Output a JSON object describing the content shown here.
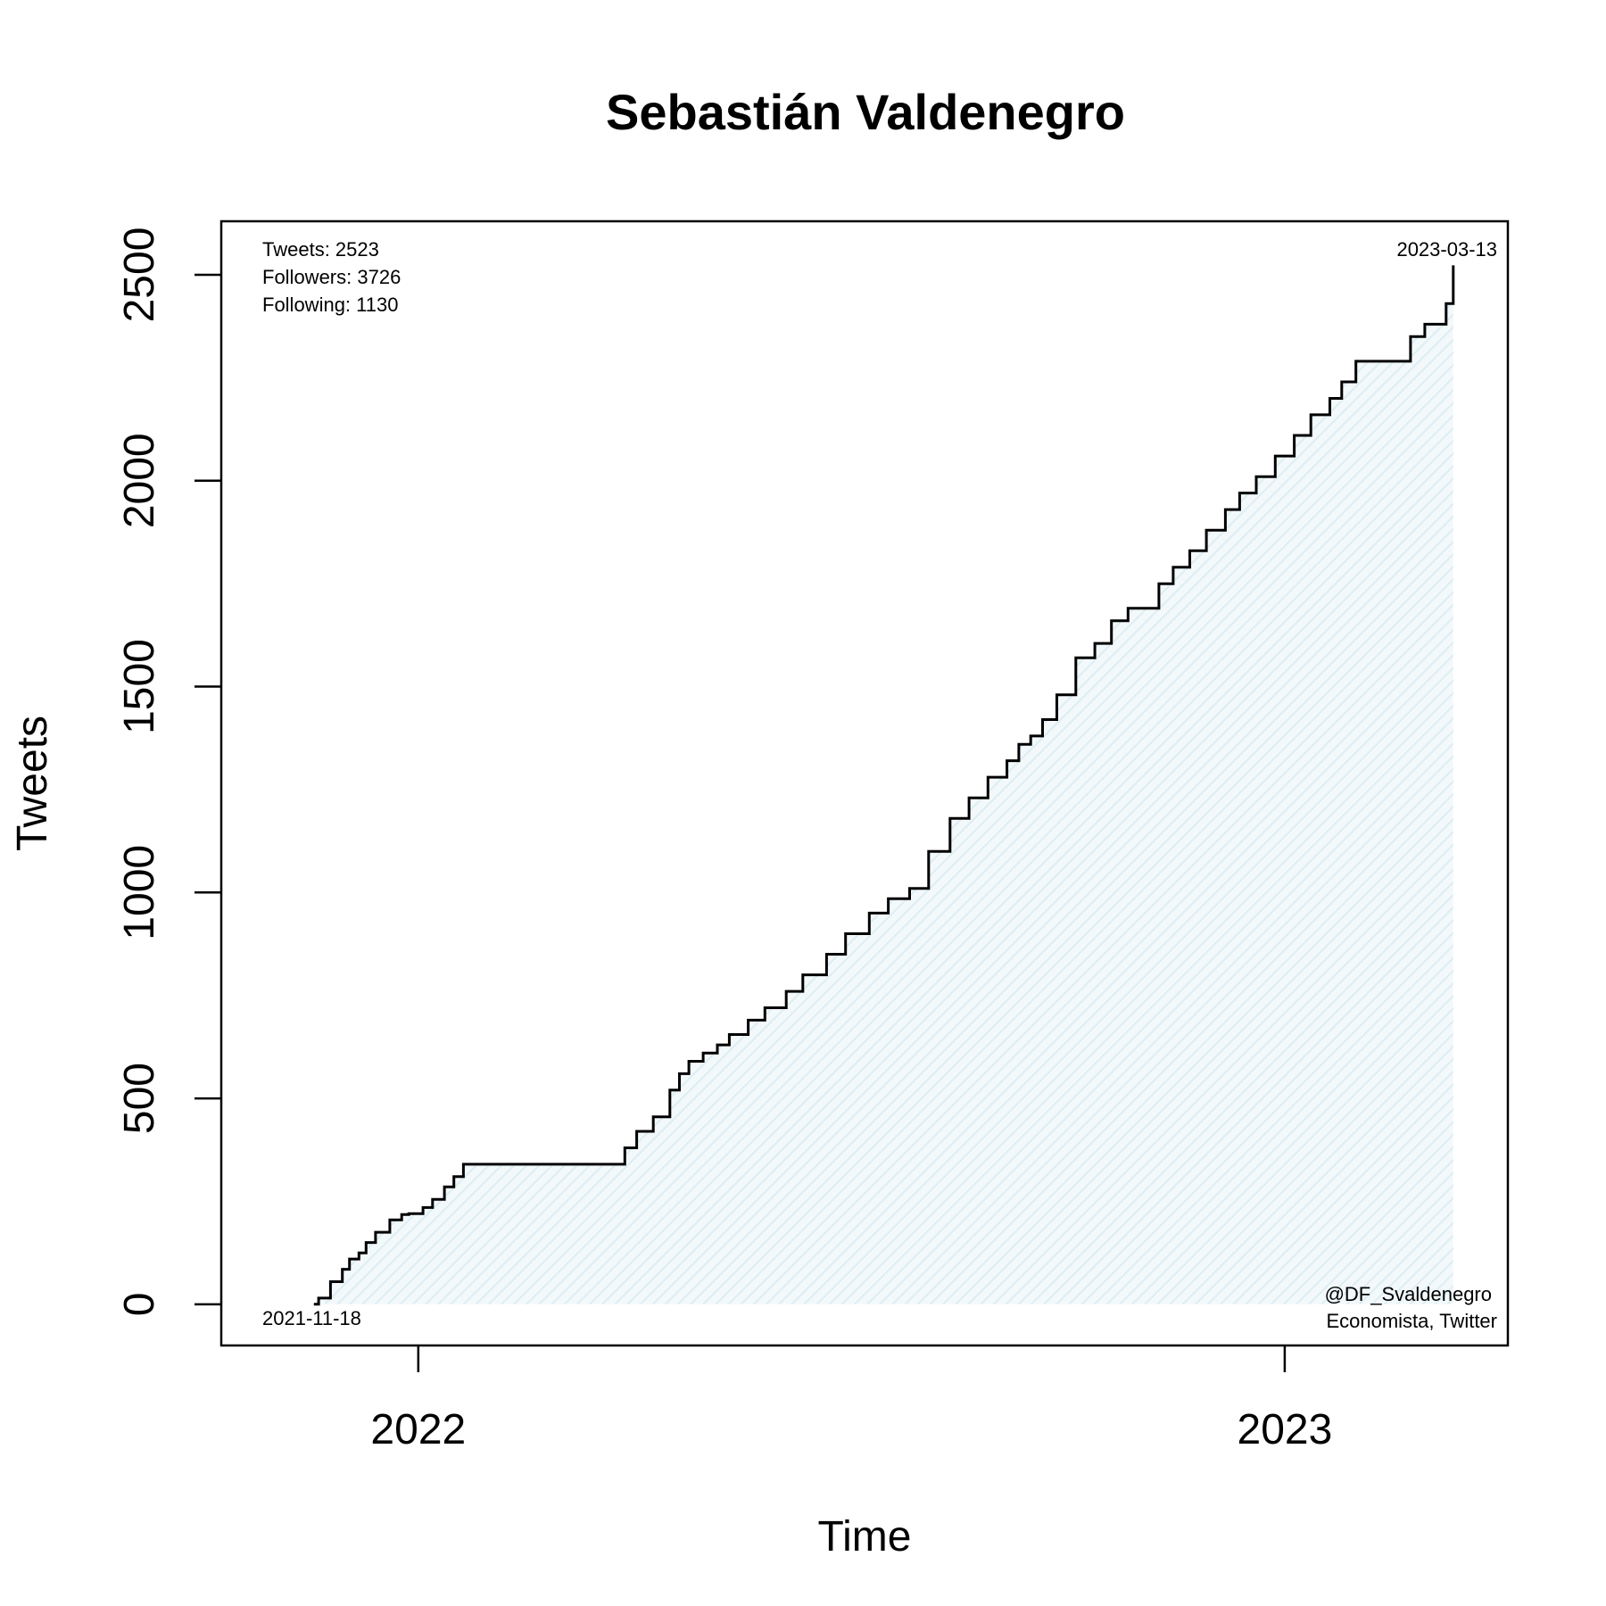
{
  "chart_data": {
    "type": "line",
    "title": "Sebastián Valdenegro",
    "xlabel": "Time",
    "ylabel": "Tweets",
    "xlim": [
      "2021-10-10",
      "2023-04-05"
    ],
    "ylim": [
      -100,
      2630
    ],
    "x_ticks": [
      {
        "label": "2022",
        "date": "2022-01-01"
      },
      {
        "label": "2023",
        "date": "2023-01-01"
      }
    ],
    "y_ticks": [
      0,
      500,
      1000,
      1500,
      2000,
      2500
    ],
    "grid": false,
    "fill_color": "#e3f1f6",
    "line_color": "#000000",
    "series": [
      {
        "x": [
          "2021-11-18",
          "2021-11-20",
          "2021-11-25",
          "2021-11-30",
          "2021-12-03",
          "2021-12-07",
          "2021-12-10",
          "2021-12-14",
          "2021-12-20",
          "2021-12-25",
          "2021-12-28",
          "2022-01-03",
          "2022-01-07",
          "2022-01-12",
          "2022-01-16",
          "2022-01-20",
          "2022-01-25",
          "2022-01-28",
          "2022-02-03",
          "2022-03-24",
          "2022-03-29",
          "2022-04-03",
          "2022-04-10",
          "2022-04-17",
          "2022-04-21",
          "2022-04-25",
          "2022-05-01",
          "2022-05-07",
          "2022-05-12",
          "2022-05-20",
          "2022-05-27",
          "2022-06-05",
          "2022-06-12",
          "2022-06-22",
          "2022-06-30",
          "2022-07-10",
          "2022-07-18",
          "2022-07-27",
          "2022-08-04",
          "2022-08-13",
          "2022-08-21",
          "2022-08-29",
          "2022-09-06",
          "2022-09-11",
          "2022-09-16",
          "2022-09-21",
          "2022-09-27",
          "2022-10-05",
          "2022-10-13",
          "2022-10-20",
          "2022-10-27",
          "2022-11-03",
          "2022-11-09",
          "2022-11-15",
          "2022-11-22",
          "2022-11-29",
          "2022-12-07",
          "2022-12-13",
          "2022-12-20",
          "2022-12-28",
          "2023-01-05",
          "2023-01-12",
          "2023-01-20",
          "2023-01-25",
          "2023-01-31",
          "2023-02-23",
          "2023-03-01",
          "2023-03-06",
          "2023-03-10",
          "2023-03-13"
        ],
        "y": [
          0,
          15,
          55,
          85,
          110,
          125,
          150,
          175,
          205,
          218,
          220,
          235,
          255,
          285,
          310,
          340,
          340,
          340,
          340,
          340,
          380,
          420,
          455,
          520,
          560,
          590,
          610,
          630,
          655,
          690,
          720,
          760,
          800,
          850,
          900,
          950,
          985,
          1010,
          1100,
          1180,
          1230,
          1280,
          1320,
          1360,
          1380,
          1420,
          1480,
          1570,
          1605,
          1660,
          1690,
          1690,
          1750,
          1790,
          1830,
          1880,
          1930,
          1970,
          2010,
          2060,
          2110,
          2160,
          2200,
          2240,
          2290,
          2350,
          2380,
          2380,
          2430,
          2523
        ]
      }
    ],
    "annotations": {
      "stats": [
        "Tweets: 2523",
        "Followers: 3726",
        "Following: 1130"
      ],
      "end_date": "2023-03-13",
      "start_date": "2021-11-18",
      "handle": "@DF_Svaldenegro",
      "description": "Economista, Twitter"
    }
  }
}
